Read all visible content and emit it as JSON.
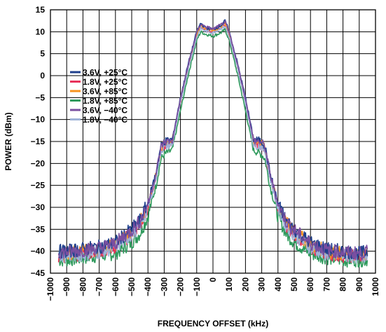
{
  "chart_data": {
    "type": "line",
    "xlabel": "FREQUENCY OFFSET (kHz)",
    "ylabel": "POWER (dBm)",
    "xlim": [
      -1000,
      1000
    ],
    "ylim": [
      -45,
      15
    ],
    "x_ticks": [
      "−1000",
      "−900",
      "−800",
      "−700",
      "−600",
      "−500",
      "−400",
      "−300",
      "−200",
      "−100",
      "0",
      "100",
      "200",
      "300",
      "400",
      "500",
      "600",
      "700",
      "800",
      "900",
      "1000"
    ],
    "y_ticks": [
      "15",
      "10",
      "5",
      "0",
      "−5",
      "−10",
      "−15",
      "−20",
      "−25",
      "−30",
      "−35",
      "−40",
      "−45"
    ],
    "grid": true,
    "legend_position": "upper-left",
    "x": [
      -950,
      -900,
      -800,
      -700,
      -600,
      -500,
      -450,
      -400,
      -350,
      -320,
      -300,
      -280,
      -250,
      -200,
      -150,
      -100,
      -75,
      -50,
      0,
      50,
      75,
      100,
      150,
      200,
      250,
      280,
      300,
      320,
      350,
      400,
      450,
      500,
      600,
      700,
      800,
      900,
      950
    ],
    "series": [
      {
        "name": "3.6V, +25°C",
        "color": "#1f3f8c",
        "values": [
          -40,
          -40,
          -39.5,
          -39,
          -38,
          -35,
          -33,
          -29,
          -22,
          -16,
          -15,
          -14.8,
          -14.5,
          -5,
          3,
          10,
          12,
          11,
          10.5,
          11.5,
          12.5,
          10,
          3,
          -5,
          -14.5,
          -14.8,
          -15,
          -16,
          -22,
          -29,
          -33,
          -35,
          -38,
          -39.5,
          -40,
          -40.5,
          -40
        ]
      },
      {
        "name": "1.8V, +25°C",
        "color": "#e8325a",
        "values": [
          -41,
          -41,
          -40.5,
          -40,
          -39,
          -36,
          -34,
          -30,
          -23,
          -17,
          -16,
          -15.8,
          -15.5,
          -6,
          2,
          9,
          11,
          10.5,
          10,
          11,
          11.5,
          9,
          2,
          -6,
          -15.5,
          -15.8,
          -16,
          -17,
          -23,
          -30,
          -34,
          -36,
          -39,
          -40.5,
          -41,
          -41,
          -41
        ]
      },
      {
        "name": "3.6V, +85°C",
        "color": "#f7931e",
        "values": [
          -40.5,
          -40.5,
          -40,
          -39.5,
          -38.5,
          -35.5,
          -33.5,
          -29.5,
          -22.5,
          -16.5,
          -15.5,
          -15.3,
          -15,
          -5.5,
          2.5,
          9.5,
          11.5,
          10.8,
          10.2,
          11.2,
          12,
          9.5,
          2.5,
          -5.5,
          -15,
          -15.3,
          -15.5,
          -16.5,
          -22.5,
          -29.5,
          -33.5,
          -35.5,
          -38.5,
          -40,
          -40.5,
          -41,
          -40.5
        ]
      },
      {
        "name": "1.8V, +85°C",
        "color": "#2e9a5c",
        "values": [
          -42,
          -42,
          -41.5,
          -41,
          -40.5,
          -38,
          -36,
          -32,
          -25,
          -19,
          -18,
          -17.5,
          -17,
          -8,
          0.5,
          8,
          10,
          9.5,
          9,
          9.8,
          10.5,
          8,
          0.5,
          -8,
          -17,
          -17.5,
          -18,
          -19,
          -25,
          -32,
          -36,
          -38,
          -40.5,
          -41.5,
          -42,
          -42,
          -42
        ]
      },
      {
        "name": "3.6V, −40°C",
        "color": "#7a4fa0",
        "values": [
          -40.2,
          -40.2,
          -39.8,
          -39.2,
          -38.2,
          -35.2,
          -33.2,
          -29.2,
          -22.2,
          -16.2,
          -15.2,
          -15,
          -14.8,
          -5.2,
          2.8,
          9.8,
          11.8,
          11.2,
          10.6,
          11.6,
          12.2,
          9.8,
          2.8,
          -5.2,
          -14.8,
          -15,
          -15.2,
          -16.2,
          -22.2,
          -29.2,
          -33.2,
          -35.2,
          -38.2,
          -39.8,
          -40.2,
          -40.5,
          -40.2
        ]
      },
      {
        "name": "1.8V, −40°C",
        "color": "#9fb3d8",
        "values": [
          -41,
          -41,
          -40.8,
          -40.2,
          -39.2,
          -36.2,
          -34.2,
          -30.2,
          -23.2,
          -17.2,
          -16.2,
          -16,
          -15.8,
          -6.2,
          1.8,
          8.8,
          10.8,
          10.2,
          9.8,
          10.8,
          11.2,
          8.8,
          1.8,
          -6.2,
          -15.8,
          -16,
          -16.2,
          -17.2,
          -23.2,
          -30.2,
          -34.2,
          -36.2,
          -39.2,
          -40.8,
          -41,
          -41.2,
          -41
        ]
      }
    ]
  }
}
